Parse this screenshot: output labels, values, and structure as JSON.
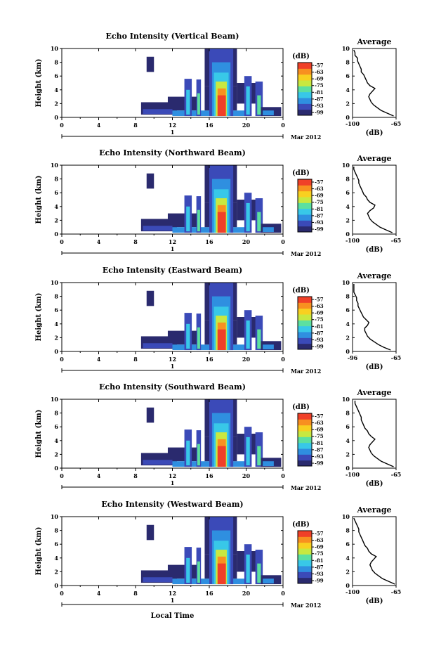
{
  "chart_data": {
    "type": "heatmap",
    "common": {
      "x_ticks": [
        "0",
        "4",
        "8",
        "12",
        "16",
        "20",
        "0"
      ],
      "xlim": [
        0,
        24
      ],
      "date_day": "1",
      "date_label": "Mar 2012",
      "y_ticks": [
        "0",
        "2",
        "4",
        "6",
        "8",
        "10"
      ],
      "ylim": [
        0,
        10
      ],
      "ylabel": "Height (km)",
      "xlabel": "Local Time",
      "colorbar_unit": "(dB)",
      "colorbar_ticks": [
        "-57",
        "-63",
        "-69",
        "-75",
        "-81",
        "-87",
        "-93",
        "-99"
      ],
      "colors": [
        "#2a2a6e",
        "#3b4ab8",
        "#2f8fe0",
        "#38c8e8",
        "#5ce0a0",
        "#c8e840",
        "#f8d020",
        "#f89020",
        "#f04028"
      ],
      "profile_title": "Average",
      "profile_xlabel": "(dB)"
    },
    "panels": [
      {
        "title": "Echo Intensity (Vertical Beam)",
        "profile_xticks": [
          "-100",
          "-65"
        ],
        "profile_xlim": [
          -100,
          -65
        ],
        "profile_height": [
          0.2,
          0.6,
          1.0,
          1.4,
          1.8,
          2.2,
          2.6,
          3.0,
          3.4,
          3.8,
          4.2,
          4.6,
          5.0,
          5.4,
          5.8,
          6.2,
          6.6,
          7.0,
          7.4,
          7.8,
          8.2,
          8.6,
          9.0,
          9.4,
          9.8
        ],
        "profile_db": [
          -67,
          -72,
          -77,
          -80,
          -83,
          -85,
          -86,
          -87,
          -86,
          -84,
          -82,
          -86,
          -88,
          -89,
          -90,
          -91,
          -93,
          -93,
          -94,
          -95,
          -96,
          -96,
          -98,
          -98,
          -99
        ]
      },
      {
        "title": "Echo Intensity (Northward Beam)",
        "profile_xticks": [
          "-100",
          "-65"
        ],
        "profile_xlim": [
          -100,
          -65
        ],
        "profile_height": [
          0.2,
          0.6,
          1.0,
          1.4,
          1.8,
          2.2,
          2.6,
          3.0,
          3.4,
          3.8,
          4.2,
          4.6,
          5.0,
          5.4,
          5.8,
          6.2,
          6.6,
          7.0,
          7.4,
          7.8,
          8.2,
          8.6,
          9.0,
          9.4,
          9.8
        ],
        "profile_db": [
          -68,
          -73,
          -78,
          -81,
          -84,
          -86,
          -87,
          -88,
          -86,
          -83,
          -82,
          -86,
          -88,
          -89,
          -91,
          -92,
          -93,
          -94,
          -95,
          -95,
          -96,
          -97,
          -98,
          -99,
          -99
        ]
      },
      {
        "title": "Echo Intensity (Eastward Beam)",
        "profile_xticks": [
          "-96",
          "-65"
        ],
        "profile_xlim": [
          -97,
          -65
        ],
        "profile_height": [
          0.2,
          0.6,
          1.0,
          1.4,
          1.8,
          2.2,
          2.6,
          3.0,
          3.4,
          3.8,
          4.2,
          4.6,
          5.0,
          5.4,
          5.8,
          6.2,
          6.6,
          7.0,
          7.4,
          7.8,
          8.2,
          8.6,
          9.0,
          9.4,
          9.8
        ],
        "profile_db": [
          -69,
          -74,
          -78,
          -81,
          -84,
          -86,
          -87,
          -88,
          -88,
          -86,
          -85,
          -87,
          -89,
          -90,
          -91,
          -92,
          -93,
          -93,
          -94,
          -94,
          -95,
          -96,
          -96,
          -96,
          -96
        ]
      },
      {
        "title": "Echo Intensity (Southward Beam)",
        "profile_xticks": [
          "-100",
          "-65"
        ],
        "profile_xlim": [
          -100,
          -65
        ],
        "profile_height": [
          0.2,
          0.6,
          1.0,
          1.4,
          1.8,
          2.2,
          2.6,
          3.0,
          3.4,
          3.8,
          4.2,
          4.6,
          5.0,
          5.4,
          5.8,
          6.2,
          6.6,
          7.0,
          7.4,
          7.8,
          8.2,
          8.6,
          9.0,
          9.4,
          9.8
        ],
        "profile_db": [
          -67,
          -72,
          -77,
          -80,
          -83,
          -85,
          -86,
          -87,
          -86,
          -84,
          -82,
          -85,
          -87,
          -88,
          -90,
          -91,
          -92,
          -93,
          -93,
          -94,
          -95,
          -96,
          -97,
          -98,
          -98
        ]
      },
      {
        "title": "Echo Intensity (Westward Beam)",
        "profile_xticks": [
          "-100",
          "-65"
        ],
        "profile_xlim": [
          -100,
          -65
        ],
        "profile_height": [
          0.2,
          0.6,
          1.0,
          1.4,
          1.8,
          2.2,
          2.6,
          3.0,
          3.4,
          3.8,
          4.2,
          4.6,
          5.0,
          5.4,
          5.8,
          6.2,
          6.6,
          7.0,
          7.4,
          7.8,
          8.2,
          8.6,
          9.0,
          9.4,
          9.8
        ],
        "profile_db": [
          -66,
          -71,
          -76,
          -79,
          -82,
          -84,
          -85,
          -86,
          -85,
          -83,
          -81,
          -85,
          -87,
          -88,
          -90,
          -91,
          -92,
          -93,
          -94,
          -95,
          -95,
          -96,
          -97,
          -98,
          -99
        ]
      }
    ],
    "echo_field": {
      "description_units": "time in hours (0-24), height in km",
      "cells": [
        {
          "t0": 9.2,
          "t1": 10.0,
          "h0": 6.6,
          "h1": 8.8,
          "level": 0
        },
        {
          "t0": 8.6,
          "t1": 12.5,
          "h0": 0.4,
          "h1": 2.2,
          "level": 0
        },
        {
          "t0": 11.5,
          "t1": 15.0,
          "h0": 1.0,
          "h1": 3.0,
          "level": 0
        },
        {
          "t0": 8.8,
          "t1": 12.0,
          "h0": 0.5,
          "h1": 1.2,
          "level": 1
        },
        {
          "t0": 12.0,
          "t1": 20.5,
          "h0": 0.2,
          "h1": 1.0,
          "level": 2
        },
        {
          "t0": 13.3,
          "t1": 14.1,
          "h0": 0.2,
          "h1": 5.6,
          "level": 1
        },
        {
          "t0": 13.5,
          "t1": 13.9,
          "h0": 0.4,
          "h1": 4.0,
          "level": 3
        },
        {
          "t0": 14.6,
          "t1": 15.1,
          "h0": 0.2,
          "h1": 5.5,
          "level": 1
        },
        {
          "t0": 14.7,
          "t1": 15.0,
          "h0": 0.4,
          "h1": 3.5,
          "level": 4
        },
        {
          "t0": 15.5,
          "t1": 19.0,
          "h0": 1.0,
          "h1": 4.5,
          "level": 0
        },
        {
          "t0": 15.5,
          "t1": 19.0,
          "h0": 4.5,
          "h1": 10.0,
          "level": 0
        },
        {
          "t0": 16.0,
          "t1": 18.6,
          "h0": 0.2,
          "h1": 10.0,
          "level": 1
        },
        {
          "t0": 16.3,
          "t1": 18.3,
          "h0": 0.2,
          "h1": 8.0,
          "level": 2
        },
        {
          "t0": 16.5,
          "t1": 18.1,
          "h0": 0.2,
          "h1": 6.5,
          "level": 3
        },
        {
          "t0": 16.7,
          "t1": 17.9,
          "h0": 0.2,
          "h1": 5.2,
          "level": 5
        },
        {
          "t0": 16.9,
          "t1": 17.8,
          "h0": 0.2,
          "h1": 4.2,
          "level": 7
        },
        {
          "t0": 16.9,
          "t1": 17.8,
          "h0": 0.2,
          "h1": 3.2,
          "level": 8
        },
        {
          "t0": 19.0,
          "t1": 21.5,
          "h0": 2.0,
          "h1": 5.0,
          "level": 0
        },
        {
          "t0": 19.8,
          "t1": 20.6,
          "h0": 0.2,
          "h1": 6.0,
          "level": 1
        },
        {
          "t0": 20.0,
          "t1": 20.4,
          "h0": 0.4,
          "h1": 4.5,
          "level": 3
        },
        {
          "t0": 21.0,
          "t1": 21.8,
          "h0": 0.2,
          "h1": 5.2,
          "level": 1
        },
        {
          "t0": 21.2,
          "t1": 21.6,
          "h0": 0.4,
          "h1": 3.2,
          "level": 4
        },
        {
          "t0": 21.6,
          "t1": 23.8,
          "h0": 0.2,
          "h1": 1.5,
          "level": 0
        },
        {
          "t0": 21.8,
          "t1": 23.0,
          "h0": 0.3,
          "h1": 1.0,
          "level": 2
        }
      ]
    }
  }
}
